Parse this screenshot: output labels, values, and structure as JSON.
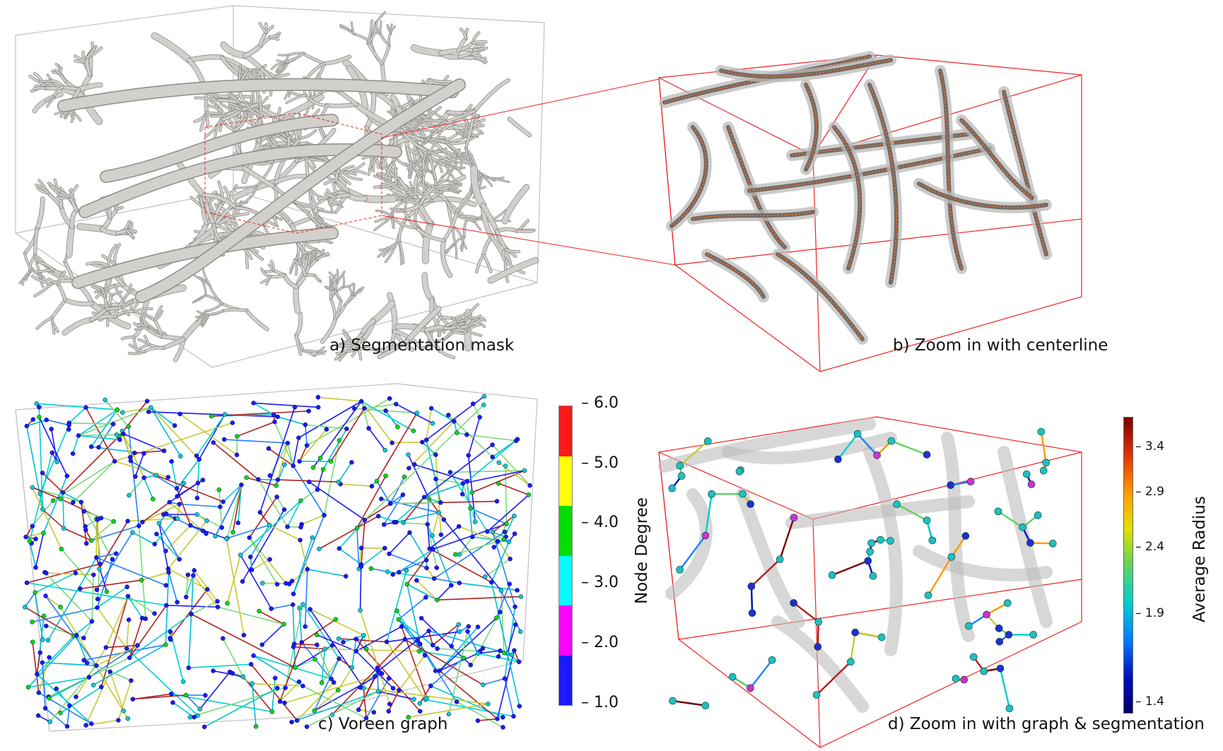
{
  "captions": {
    "a": "a) Segmentation mask",
    "b": "b) Zoom in with centerline",
    "c": "c) Voreen graph",
    "d": "d) Zoom in with graph & segmentation"
  },
  "colorbar_degree": {
    "title": "Node Degree",
    "ticks": [
      "6.0",
      "5.0",
      "4.0",
      "3.0",
      "2.0",
      "1.0"
    ],
    "colors": [
      "#ff1a1a",
      "#ffff00",
      "#00dd00",
      "#00ffff",
      "#ff00ff",
      "#1a1aff"
    ]
  },
  "colorbar_radius": {
    "title": "Average Radius",
    "ticks": [
      "3.4",
      "2.9",
      "2.4",
      "1.9",
      "1.4"
    ],
    "gradient": [
      "#7a0000",
      "#e03000",
      "#ff9900",
      "#e6e000",
      "#5fd35f",
      "#00cfcf",
      "#0080ff",
      "#0010c0",
      "#00006a"
    ]
  },
  "colors": {
    "vessel": "#d2d0cc",
    "vessel_edge": "#8f8c88",
    "box_frame": "#bbbbbb",
    "zoom_frame": "#ee2222"
  }
}
